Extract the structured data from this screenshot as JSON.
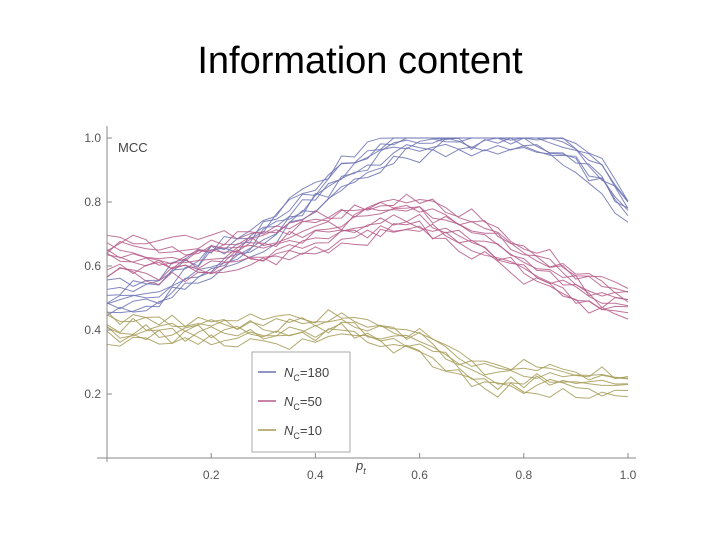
{
  "slide": {
    "title": "Information content"
  },
  "chart_data": {
    "type": "line",
    "xlabel": "p_t",
    "ylabel": "MCC",
    "xlim": [
      0,
      1
    ],
    "ylim": [
      0,
      1
    ],
    "xticks": [
      "0.2",
      "0.4",
      "0.6",
      "0.8",
      "1.0"
    ],
    "yticks": [
      "0.2",
      "0.4",
      "0.6",
      "0.8",
      "1.0"
    ],
    "legend": {
      "placement": "lower-center",
      "entries": [
        {
          "name": "N",
          "sub": "C",
          "value": "=180",
          "color": "#6b72b3"
        },
        {
          "name": "N",
          "sub": "C",
          "value": "=50",
          "color": "#b55a88"
        },
        {
          "name": "N",
          "sub": "C",
          "value": "=10",
          "color": "#a59a55"
        }
      ]
    },
    "series": [
      {
        "name": "N_C=180",
        "color": "#6b72b3",
        "runs": 8,
        "x": [
          0,
          0.05,
          0.1,
          0.15,
          0.2,
          0.25,
          0.3,
          0.35,
          0.4,
          0.45,
          0.5,
          0.55,
          0.6,
          0.65,
          0.7,
          0.75,
          0.8,
          0.85,
          0.9,
          0.95,
          1.0
        ],
        "y": [
          0.5,
          0.5,
          0.52,
          0.58,
          0.62,
          0.65,
          0.7,
          0.76,
          0.82,
          0.88,
          0.93,
          0.97,
          0.99,
          1.0,
          1.0,
          1.0,
          1.0,
          0.98,
          0.95,
          0.88,
          0.77
        ]
      },
      {
        "name": "N_C=50",
        "color": "#b55a88",
        "runs": 10,
        "x": [
          0,
          0.05,
          0.1,
          0.15,
          0.2,
          0.25,
          0.3,
          0.35,
          0.4,
          0.45,
          0.5,
          0.55,
          0.6,
          0.65,
          0.7,
          0.75,
          0.8,
          0.85,
          0.9,
          0.95,
          1.0
        ],
        "y": [
          0.63,
          0.63,
          0.62,
          0.62,
          0.63,
          0.65,
          0.66,
          0.68,
          0.7,
          0.72,
          0.74,
          0.76,
          0.76,
          0.73,
          0.7,
          0.66,
          0.62,
          0.58,
          0.54,
          0.5,
          0.48
        ]
      },
      {
        "name": "N_C=10",
        "color": "#a59a55",
        "runs": 7,
        "x": [
          0,
          0.05,
          0.1,
          0.15,
          0.2,
          0.25,
          0.3,
          0.35,
          0.4,
          0.45,
          0.5,
          0.55,
          0.6,
          0.65,
          0.7,
          0.75,
          0.8,
          0.85,
          0.9,
          0.95,
          1.0
        ],
        "y": [
          0.4,
          0.4,
          0.4,
          0.4,
          0.4,
          0.4,
          0.4,
          0.4,
          0.41,
          0.41,
          0.4,
          0.38,
          0.36,
          0.32,
          0.27,
          0.25,
          0.25,
          0.25,
          0.24,
          0.23,
          0.22
        ]
      }
    ]
  }
}
